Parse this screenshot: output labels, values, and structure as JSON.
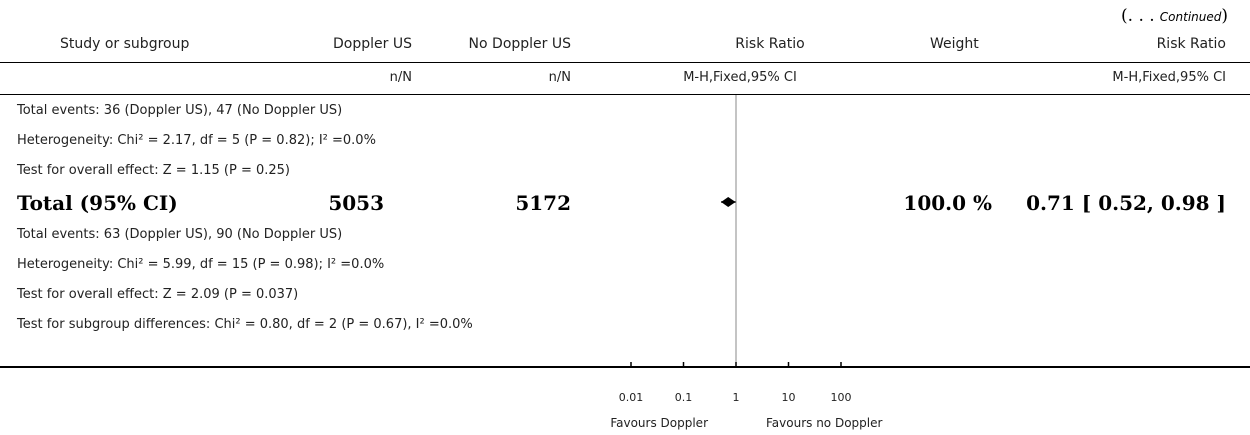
{
  "continued": {
    "open": "(. . .",
    "word": "Continued",
    "close": ")"
  },
  "headers": {
    "study": "Study or subgroup",
    "doppler": "Doppler US",
    "no_doppler": "No Doppler US",
    "rr": "Risk Ratio",
    "weight": "Weight",
    "rr2": "Risk Ratio"
  },
  "subheaders": {
    "doppler": "n/N",
    "no_doppler": "n/N",
    "rr": "M-H,Fixed,95% CI",
    "rr2": "M-H,Fixed,95% CI"
  },
  "lines_top": [
    "Total events: 36 (Doppler US), 47 (No Doppler US)",
    "Heterogeneity: Chi² = 2.17, df = 5 (P = 0.82); I² =0.0%",
    "Test for overall effect: Z = 1.15 (P = 0.25)"
  ],
  "total": {
    "label": "Total (95% CI)",
    "doppler": "5053",
    "no_doppler": "5172",
    "weight": "100.0 %",
    "ci": "0.71 [ 0.52, 0.98 ]"
  },
  "lines_bottom": [
    "Total events: 63 (Doppler US), 90 (No Doppler US)",
    "Heterogeneity: Chi² = 5.99, df = 15 (P = 0.98); I² =0.0%",
    "Test for overall effect: Z = 2.09 (P = 0.037)",
    "Test for subgroup differences: Chi² = 0.80, df = 2 (P = 0.67), I² =0.0%"
  ],
  "chart_data": {
    "type": "scatter",
    "scale": "log",
    "xlim": [
      0.01,
      100
    ],
    "ticks": [
      0.01,
      0.1,
      1,
      10,
      100
    ],
    "tick_labels": [
      "0.01",
      "0.1",
      "1",
      "10",
      "100"
    ],
    "reference_line": 1,
    "points": [
      {
        "label": "Total (95% CI)",
        "estimate": 0.71,
        "ci_low": 0.52,
        "ci_high": 0.98
      }
    ],
    "favours_left": "Favours Doppler",
    "favours_right": "Favours no Doppler"
  }
}
